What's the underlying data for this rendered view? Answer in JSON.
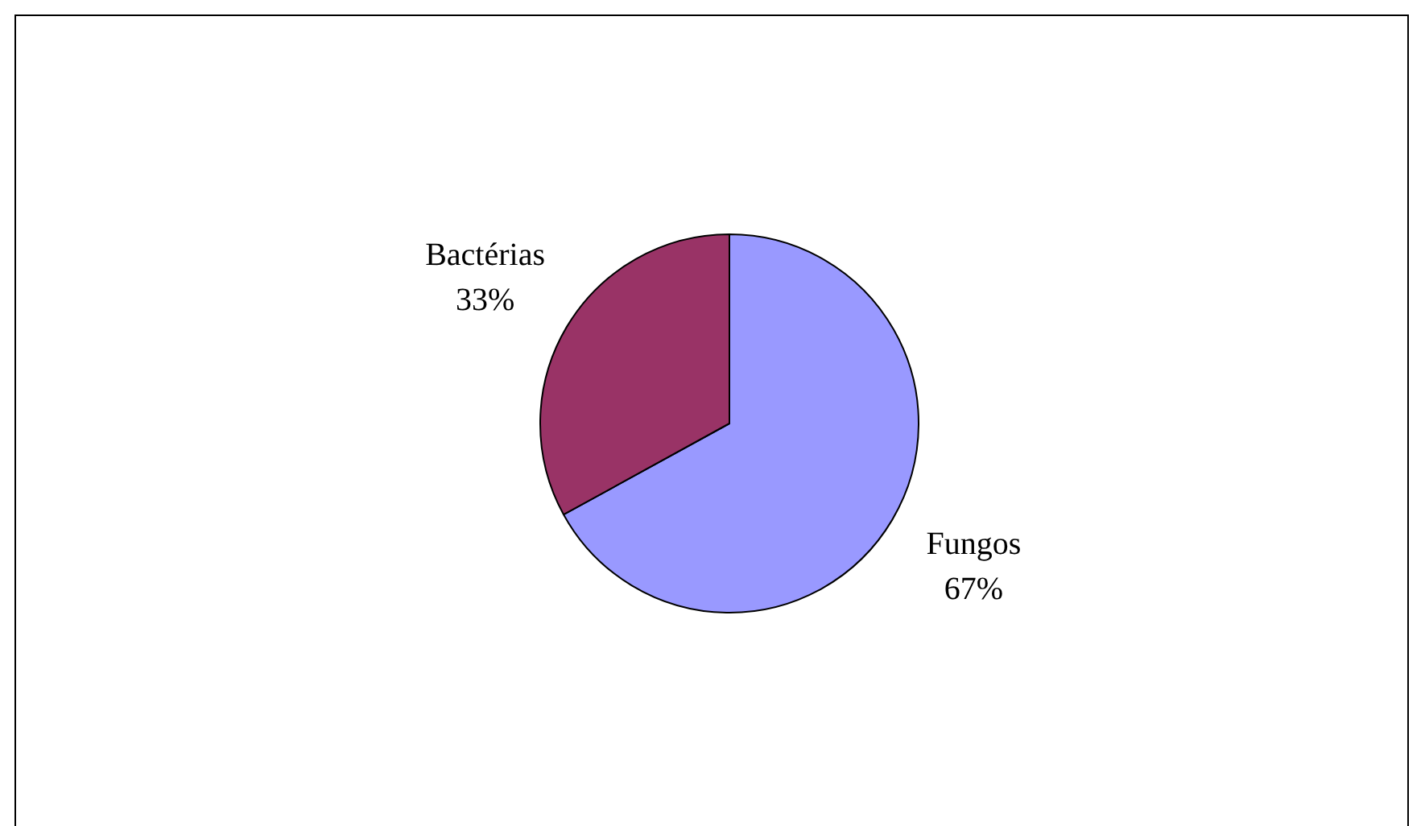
{
  "chart_data": {
    "type": "pie",
    "categories": [
      "Fungos",
      "Bactérias"
    ],
    "values": [
      67,
      33
    ],
    "colors": [
      "#9999ff",
      "#993366"
    ],
    "value_labels": [
      "67%",
      "33%"
    ],
    "legend": false
  }
}
